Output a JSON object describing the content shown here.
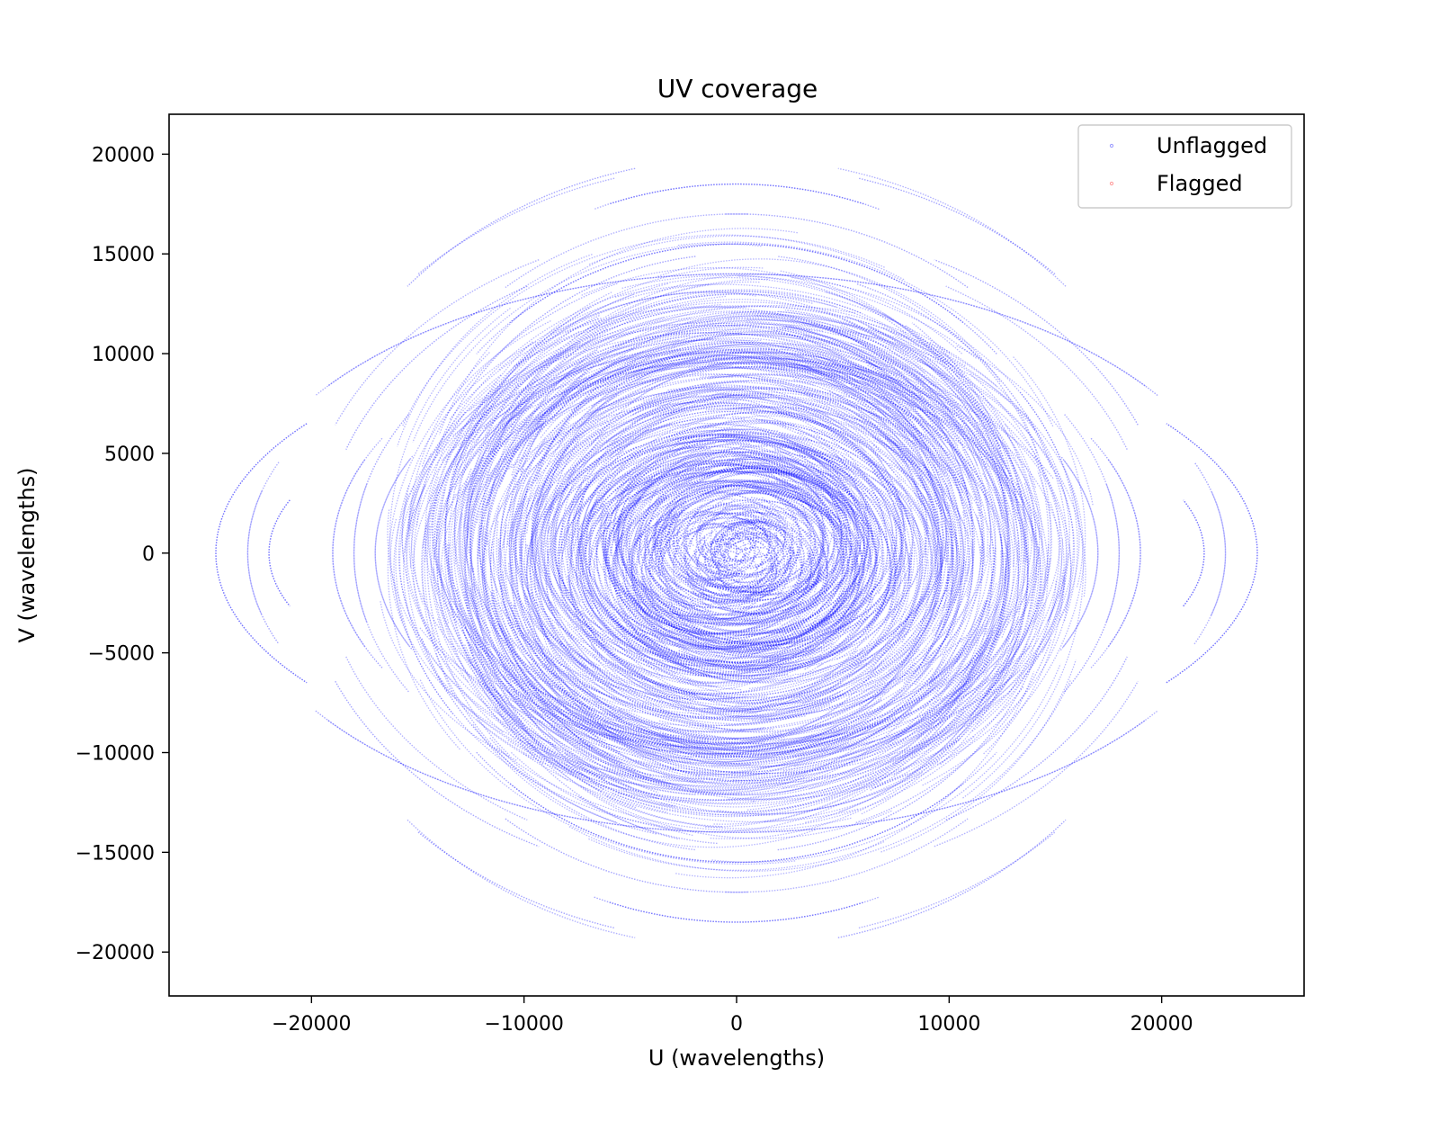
{
  "chart_data": {
    "type": "scatter",
    "title": "UV coverage",
    "xlabel": "U (wavelengths)",
    "ylabel": "V (wavelengths)",
    "xlim": [
      -26700,
      26700
    ],
    "ylim": [
      -22200,
      22000
    ],
    "xticks": [
      -20000,
      -10000,
      0,
      10000,
      20000
    ],
    "xtick_labels": [
      "−20000",
      "−10000",
      "0",
      "10000",
      "20000"
    ],
    "yticks": [
      -20000,
      -15000,
      -10000,
      -5000,
      0,
      5000,
      10000,
      15000,
      20000
    ],
    "ytick_labels": [
      "−20000",
      "−15000",
      "−10000",
      "−5000",
      "0",
      "5000",
      "10000",
      "15000",
      "20000"
    ],
    "grid": false,
    "legend_position": "top-right",
    "series": [
      {
        "name": "Unflagged",
        "color": "#0000ff",
        "marker": "dot",
        "description_points": "uv tracks: elliptical arcs (and their conjugates) centered near origin, densest within |u|<13000, |v|<13000; outer arcs reach ~|u| 24000, |v| 20000",
        "tracks": [
          {
            "a": 24000,
            "b": 14000,
            "rot": 0,
            "t0": 0.6,
            "t1": 2.5
          },
          {
            "a": 23000,
            "b": 13000,
            "rot": 0,
            "t0": 2.9,
            "t1": 3.5
          },
          {
            "a": 24500,
            "b": 11500,
            "rot": 0,
            "t0": -0.6,
            "t1": 0.6
          },
          {
            "a": 21500,
            "b": 19500,
            "rot": 0,
            "t0": 0.8,
            "t1": 1.3
          },
          {
            "a": 21000,
            "b": 19800,
            "rot": 0,
            "t0": 1.8,
            "t1": 2.4
          },
          {
            "a": 20500,
            "b": 16500,
            "rot": 0,
            "t0": 0.4,
            "t1": 1.1
          },
          {
            "a": 19500,
            "b": 15500,
            "rot": 0,
            "t0": 2.1,
            "t1": 2.8
          },
          {
            "a": 18500,
            "b": 18500,
            "rot": 0,
            "t0": 1.2,
            "t1": 1.9
          },
          {
            "a": 17500,
            "b": 17000,
            "rot": 0,
            "t0": 0.9,
            "t1": 1.6
          },
          {
            "a": 19000,
            "b": 12000,
            "rot": 0,
            "t0": -0.4,
            "t1": 0.5
          },
          {
            "a": 18000,
            "b": 13500,
            "rot": 0,
            "t0": 2.6,
            "t1": 3.4
          },
          {
            "a": 22000,
            "b": 9000,
            "rot": 0,
            "t0": -0.3,
            "t1": 0.3
          },
          {
            "a": 16000,
            "b": 15500,
            "rot": 0,
            "t0": 0.7,
            "t1": 2.3
          },
          {
            "a": 15500,
            "b": 14500,
            "rot": 0,
            "t0": 0.3,
            "t1": 1.2
          },
          {
            "a": 15000,
            "b": 15000,
            "rot": 0,
            "t0": 1.7,
            "t1": 2.8
          },
          {
            "a": 17000,
            "b": 11000,
            "rot": 0,
            "t0": 2.7,
            "t1": 3.6
          }
        ]
      },
      {
        "name": "Flagged",
        "color": "#ff0000",
        "marker": "dot",
        "points": []
      }
    ]
  }
}
